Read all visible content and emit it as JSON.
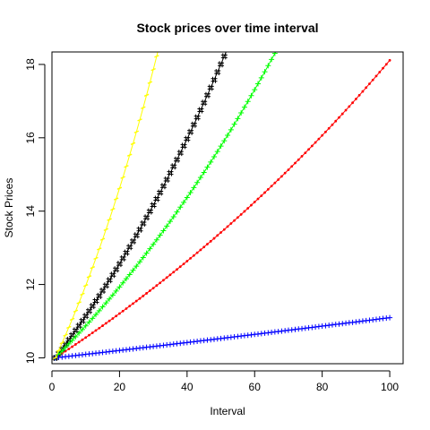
{
  "chart_data": {
    "type": "line",
    "title": "Stock prices over time interval",
    "xlabel": "Interval",
    "ylabel": "Stock Prices",
    "xlim": [
      0,
      103.96
    ],
    "ylim": [
      9.84,
      18.34
    ],
    "x_ticks": [
      0,
      20,
      40,
      60,
      80,
      100
    ],
    "y_ticks": [
      10,
      12,
      14,
      16,
      18
    ],
    "x_tick_labels": [
      "0",
      "20",
      "40",
      "60",
      "80",
      "100"
    ],
    "y_tick_labels": [
      "10",
      "12",
      "14",
      "16",
      "18"
    ],
    "grid": false,
    "legend": "none",
    "x": [
      1,
      100
    ],
    "series": [
      {
        "color": "#ff0000",
        "marker": "point",
        "start": 10.0,
        "growth_rate": 0.006,
        "values_at_x": {
          "1": 10.0,
          "20": 11.2,
          "40": 12.6,
          "60": 14.3,
          "80": 16.1,
          "100": 18.1
        }
      },
      {
        "color": "#000000",
        "marker": "hash",
        "start": 10.0,
        "growth_rate": 0.012,
        "values_at_x": {
          "1": 10.0,
          "20": 12.6,
          "40": 15.9,
          "52": 18.4
        }
      },
      {
        "color": "#00ff00",
        "marker": "plus",
        "start": 10.0,
        "growth_rate": 0.0093,
        "values_at_x": {
          "1": 10.0,
          "20": 11.9,
          "40": 14.4,
          "60": 17.4,
          "66": 18.4
        }
      },
      {
        "color": "#0000ff",
        "marker": "plus",
        "start": 10.0,
        "growth_rate": 0.00105,
        "values_at_x": {
          "1": 10.0,
          "20": 10.2,
          "40": 10.4,
          "60": 10.6,
          "80": 10.8,
          "100": 11.05
        }
      },
      {
        "color": "#ffff00",
        "marker": "dash",
        "start": 10.0,
        "growth_rate": 0.02,
        "values_at_x": {
          "1": 10.0,
          "10": 12.0,
          "20": 14.6,
          "31": 18.4
        }
      }
    ]
  }
}
